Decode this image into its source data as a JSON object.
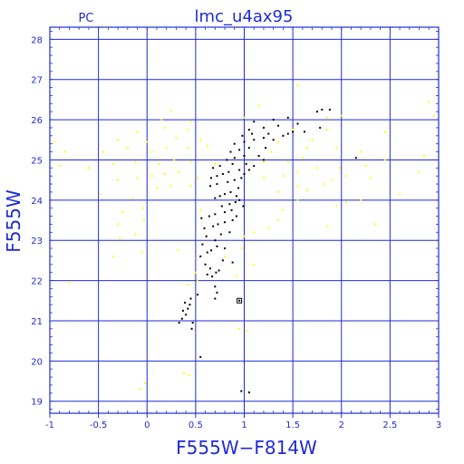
{
  "chart_data": {
    "type": "scatter",
    "title": "lmc_u4ax95",
    "corner_label": "PC",
    "xlabel": "F555W−F814W",
    "ylabel": "F555W",
    "xlim": [
      -1,
      3
    ],
    "ylim": [
      28.3,
      18.7
    ],
    "y_inverted": true,
    "grid": true,
    "x_ticks": [
      -1,
      -0.5,
      0,
      0.5,
      1,
      1.5,
      2,
      2.5,
      3
    ],
    "x_tick_labels": [
      "-1",
      "-0.5",
      "0",
      "0.5",
      "1",
      "1.5",
      "2",
      "2.5",
      "3"
    ],
    "y_ticks": [
      19,
      20,
      21,
      22,
      23,
      24,
      25,
      26,
      27,
      28
    ],
    "y_tick_labels": [
      "19",
      "20",
      "21",
      "22",
      "23",
      "24",
      "25",
      "26",
      "27",
      "28"
    ],
    "colors": {
      "axis": "#1f2bd6",
      "grid": "#1f2bd6",
      "background": "#ffffff",
      "selected_stars": "#000000",
      "field_stars": "#ffff00"
    },
    "series": [
      {
        "color": "#000000",
        "points": [
          [
            0.97,
            19.25
          ],
          [
            1.05,
            19.22
          ],
          [
            0.55,
            20.1
          ],
          [
            0.46,
            20.8
          ],
          [
            0.47,
            20.95
          ],
          [
            0.33,
            20.95
          ],
          [
            0.36,
            21.05
          ],
          [
            0.4,
            21.15
          ],
          [
            0.37,
            21.25
          ],
          [
            0.42,
            21.3
          ],
          [
            0.44,
            21.4
          ],
          [
            0.39,
            21.45
          ],
          [
            0.45,
            21.55
          ],
          [
            0.95,
            21.5
          ],
          [
            0.52,
            21.65
          ],
          [
            0.7,
            21.55
          ],
          [
            0.72,
            21.7
          ],
          [
            0.7,
            21.85
          ],
          [
            0.62,
            22.15
          ],
          [
            0.67,
            22.1
          ],
          [
            0.71,
            22.2
          ],
          [
            0.65,
            22.3
          ],
          [
            0.6,
            22.4
          ],
          [
            0.74,
            22.25
          ],
          [
            0.78,
            22.5
          ],
          [
            0.88,
            22.45
          ],
          [
            0.55,
            22.6
          ],
          [
            0.62,
            22.7
          ],
          [
            0.66,
            22.75
          ],
          [
            0.72,
            22.85
          ],
          [
            0.8,
            22.8
          ],
          [
            0.57,
            22.9
          ],
          [
            0.7,
            23.0
          ],
          [
            0.61,
            23.1
          ],
          [
            0.76,
            23.15
          ],
          [
            0.85,
            23.2
          ],
          [
            0.59,
            23.3
          ],
          [
            0.68,
            23.35
          ],
          [
            0.73,
            23.4
          ],
          [
            0.8,
            23.45
          ],
          [
            0.88,
            23.5
          ],
          [
            0.56,
            23.55
          ],
          [
            0.64,
            23.6
          ],
          [
            0.7,
            23.65
          ],
          [
            0.8,
            23.7
          ],
          [
            0.87,
            23.75
          ],
          [
            0.92,
            23.6
          ],
          [
            0.77,
            23.85
          ],
          [
            0.85,
            23.9
          ],
          [
            0.91,
            23.95
          ],
          [
            0.95,
            24.0
          ],
          [
            0.7,
            24.05
          ],
          [
            0.75,
            24.1
          ],
          [
            0.8,
            24.15
          ],
          [
            0.86,
            24.2
          ],
          [
            0.92,
            24.1
          ],
          [
            0.94,
            24.3
          ],
          [
            0.65,
            24.35
          ],
          [
            0.72,
            24.4
          ],
          [
            0.83,
            24.45
          ],
          [
            0.9,
            24.5
          ],
          [
            0.97,
            24.55
          ],
          [
            0.66,
            24.55
          ],
          [
            0.72,
            24.6
          ],
          [
            0.78,
            24.65
          ],
          [
            0.84,
            24.7
          ],
          [
            0.95,
            24.75
          ],
          [
            1.05,
            24.75
          ],
          [
            0.68,
            24.8
          ],
          [
            0.75,
            24.85
          ],
          [
            0.88,
            24.9
          ],
          [
            1.02,
            24.9
          ],
          [
            1.1,
            24.85
          ],
          [
            0.82,
            25.0
          ],
          [
            0.9,
            25.05
          ],
          [
            1.0,
            25.1
          ],
          [
            1.15,
            25.1
          ],
          [
            0.86,
            25.2
          ],
          [
            0.95,
            25.25
          ],
          [
            1.05,
            25.3
          ],
          [
            1.22,
            25.3
          ],
          [
            0.9,
            25.4
          ],
          [
            1.0,
            25.45
          ],
          [
            1.1,
            25.5
          ],
          [
            1.3,
            25.5
          ],
          [
            1.2,
            25.55
          ],
          [
            0.98,
            25.6
          ],
          [
            1.08,
            25.65
          ],
          [
            1.25,
            25.65
          ],
          [
            1.4,
            25.6
          ],
          [
            1.45,
            25.65
          ],
          [
            1.5,
            25.7
          ],
          [
            1.05,
            25.75
          ],
          [
            1.2,
            25.8
          ],
          [
            1.35,
            25.85
          ],
          [
            1.55,
            25.9
          ],
          [
            1.62,
            25.7
          ],
          [
            1.78,
            25.8
          ],
          [
            1.1,
            25.95
          ],
          [
            1.3,
            26.0
          ],
          [
            1.45,
            26.05
          ],
          [
            1.75,
            26.2
          ],
          [
            1.8,
            26.25
          ],
          [
            1.88,
            26.25
          ],
          [
            2.15,
            25.05
          ],
          [
            1.2,
            25.0
          ],
          [
            1.0,
            24.65
          ],
          [
            0.99,
            23.85
          ]
        ]
      },
      {
        "color": "#ffff00",
        "points": [
          [
            -0.07,
            19.3
          ],
          [
            -0.02,
            19.45
          ],
          [
            0.38,
            19.7
          ],
          [
            0.43,
            19.65
          ],
          [
            0.95,
            20.8
          ],
          [
            1.02,
            20.75
          ],
          [
            -0.8,
            21.95
          ],
          [
            0.52,
            22.0
          ],
          [
            0.92,
            22.1
          ],
          [
            1.1,
            22.4
          ],
          [
            -0.35,
            22.6
          ],
          [
            -0.05,
            22.7
          ],
          [
            0.32,
            22.75
          ],
          [
            0.98,
            22.8
          ],
          [
            1.1,
            23.2
          ],
          [
            -0.28,
            23.05
          ],
          [
            -0.12,
            23.15
          ],
          [
            -0.3,
            23.4
          ],
          [
            -0.03,
            23.5
          ],
          [
            1.25,
            23.3
          ],
          [
            1.35,
            23.5
          ],
          [
            1.85,
            23.35
          ],
          [
            2.35,
            23.4
          ],
          [
            -0.25,
            23.7
          ],
          [
            -0.04,
            23.8
          ],
          [
            0.55,
            23.75
          ],
          [
            1.4,
            23.75
          ],
          [
            1.55,
            24.0
          ],
          [
            1.95,
            23.85
          ],
          [
            2.05,
            23.95
          ],
          [
            2.2,
            24.0
          ],
          [
            -0.48,
            24.15
          ],
          [
            0.1,
            24.3
          ],
          [
            0.25,
            24.35
          ],
          [
            0.45,
            24.35
          ],
          [
            1.35,
            24.2
          ],
          [
            1.55,
            24.35
          ],
          [
            1.82,
            24.4
          ],
          [
            1.9,
            24.5
          ],
          [
            2.05,
            24.6
          ],
          [
            2.3,
            24.55
          ],
          [
            2.6,
            24.15
          ],
          [
            -0.3,
            24.5
          ],
          [
            -0.1,
            24.55
          ],
          [
            0.05,
            24.6
          ],
          [
            0.18,
            24.65
          ],
          [
            0.33,
            24.7
          ],
          [
            0.52,
            24.55
          ],
          [
            1.2,
            24.55
          ],
          [
            1.4,
            24.6
          ],
          [
            1.55,
            24.7
          ],
          [
            1.75,
            24.8
          ],
          [
            1.98,
            24.8
          ],
          [
            2.25,
            24.85
          ],
          [
            2.8,
            24.7
          ],
          [
            -0.9,
            24.85
          ],
          [
            -0.6,
            24.8
          ],
          [
            -0.35,
            24.9
          ],
          [
            -0.12,
            24.95
          ],
          [
            0.12,
            24.9
          ],
          [
            0.28,
            25.0
          ],
          [
            0.45,
            24.95
          ],
          [
            0.7,
            24.9
          ],
          [
            1.2,
            24.95
          ],
          [
            1.45,
            24.95
          ],
          [
            1.6,
            25.05
          ],
          [
            2.45,
            25.0
          ],
          [
            -0.85,
            25.2
          ],
          [
            -0.45,
            25.2
          ],
          [
            -0.2,
            25.3
          ],
          [
            0.05,
            25.2
          ],
          [
            0.2,
            25.3
          ],
          [
            0.42,
            25.3
          ],
          [
            0.62,
            25.35
          ],
          [
            1.28,
            25.2
          ],
          [
            1.65,
            25.3
          ],
          [
            1.95,
            25.3
          ],
          [
            2.2,
            25.2
          ],
          [
            2.85,
            25.1
          ],
          [
            -0.95,
            25.45
          ],
          [
            -0.3,
            25.5
          ],
          [
            0.0,
            25.45
          ],
          [
            0.3,
            25.55
          ],
          [
            0.55,
            25.5
          ],
          [
            1.35,
            25.45
          ],
          [
            1.7,
            25.5
          ],
          [
            -0.1,
            25.7
          ],
          [
            0.18,
            25.8
          ],
          [
            0.42,
            25.75
          ],
          [
            1.5,
            25.75
          ],
          [
            1.85,
            25.75
          ],
          [
            2.45,
            25.7
          ],
          [
            0.15,
            26.0
          ],
          [
            0.45,
            25.95
          ],
          [
            1.0,
            26.05
          ],
          [
            1.85,
            26.05
          ],
          [
            2.0,
            26.1
          ],
          [
            0.25,
            26.2
          ],
          [
            1.15,
            26.35
          ],
          [
            2.95,
            26.1
          ],
          [
            2.9,
            26.45
          ],
          [
            1.55,
            26.85
          ],
          [
            0.42,
            21.9
          ],
          [
            0.5,
            22.2
          ],
          [
            0.8,
            22.6
          ],
          [
            1.0,
            23.1
          ],
          [
            1.65,
            24.25
          ],
          [
            -0.15,
            24.05
          ]
        ]
      }
    ]
  }
}
